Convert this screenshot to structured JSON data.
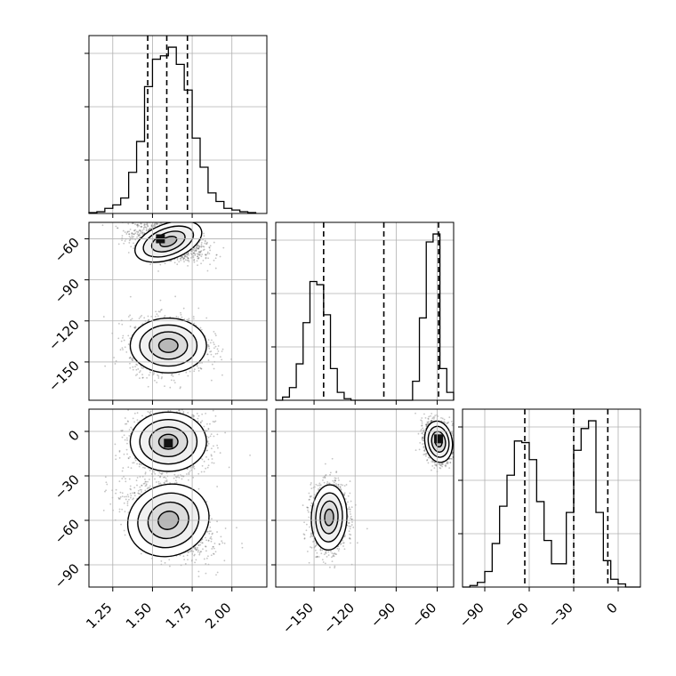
{
  "chart_data": {
    "type": "corner",
    "title": "",
    "grid": true,
    "colors": {
      "line": "#000000",
      "grid": "#b0b0b0",
      "sample": "#555555"
    },
    "parameters": [
      {
        "name": "",
        "range": [
          1.1,
          2.22
        ],
        "ticks": [
          1.25,
          1.5,
          1.75,
          2.0
        ],
        "tick_labels": [
          "1.25",
          "1.50",
          "1.75",
          "2.00"
        ]
      },
      {
        "name": "",
        "range": [
          -178,
          -48
        ],
        "ticks": [
          -150,
          -120,
          -90,
          -60
        ],
        "tick_labels": [
          "−150",
          "−120",
          "−90",
          "−60"
        ]
      },
      {
        "name": "",
        "range": [
          -105,
          15
        ],
        "ticks": [
          -90,
          -60,
          -30,
          0
        ],
        "tick_labels": [
          "−90",
          "−60",
          "−30",
          "0"
        ]
      }
    ],
    "histograms": [
      {
        "param": 0,
        "bin_edges": [
          1.1,
          1.15,
          1.2,
          1.25,
          1.3,
          1.35,
          1.4,
          1.45,
          1.5,
          1.55,
          1.6,
          1.65,
          1.7,
          1.75,
          1.8,
          1.85,
          1.9,
          1.95,
          2.0,
          2.05,
          2.1,
          2.15
        ],
        "counts": [
          0.005,
          0.01,
          0.03,
          0.05,
          0.09,
          0.24,
          0.42,
          0.74,
          0.9,
          0.92,
          0.97,
          0.87,
          0.72,
          0.44,
          0.27,
          0.12,
          0.07,
          0.03,
          0.02,
          0.01,
          0.005
        ],
        "quantiles": [
          1.47,
          1.59,
          1.72
        ]
      },
      {
        "param": 1,
        "bin_edges": [
          -178,
          -173,
          -168,
          -163,
          -158,
          -153,
          -148,
          -143,
          -138,
          -133,
          -128,
          -123,
          -118,
          -113,
          -108,
          -103,
          -98,
          -93,
          -88,
          -83,
          -78,
          -73,
          -68,
          -63,
          -58,
          -53,
          -48
        ],
        "counts": [
          0.0,
          0.02,
          0.08,
          0.23,
          0.49,
          0.75,
          0.73,
          0.54,
          0.2,
          0.05,
          0.01,
          0.0,
          0.0,
          0.0,
          0.0,
          0.0,
          0.0,
          0.0,
          0.0,
          0.0,
          0.12,
          0.52,
          1.0,
          1.05,
          0.2,
          0.05
        ],
        "quantiles": [
          -143,
          -99,
          -59
        ]
      },
      {
        "param": 2,
        "bin_edges": [
          -105,
          -100,
          -95,
          -90,
          -85,
          -80,
          -75,
          -70,
          -65,
          -60,
          -55,
          -50,
          -45,
          -40,
          -35,
          -30,
          -25,
          -20,
          -15,
          -10,
          -5,
          0,
          5,
          10,
          15
        ],
        "counts": [
          0.0,
          0.01,
          0.03,
          0.1,
          0.28,
          0.52,
          0.72,
          0.94,
          0.93,
          0.82,
          0.55,
          0.3,
          0.15,
          0.15,
          0.48,
          0.88,
          1.02,
          1.07,
          0.48,
          0.17,
          0.05,
          0.02,
          0.0,
          0.0
        ],
        "quantiles": [
          -63,
          -30,
          -7
        ]
      }
    ],
    "density_panels": [
      {
        "x_param": 0,
        "y_param": 1,
        "modes": [
          {
            "center": [
              1.6,
              -62
            ],
            "sigma": [
              0.11,
              6.5
            ],
            "rho": -0.45,
            "weight": 0.5
          },
          {
            "center": [
              1.6,
              -138
            ],
            "sigma": [
              0.12,
              10
            ],
            "rho": 0.0,
            "weight": 0.5
          }
        ],
        "peaks": [
          [
            1.55,
            -60
          ]
        ]
      },
      {
        "x_param": 0,
        "y_param": 2,
        "modes": [
          {
            "center": [
              1.6,
              -7
            ],
            "sigma": [
              0.12,
              10
            ],
            "rho": 0.0,
            "weight": 0.5
          },
          {
            "center": [
              1.6,
              -60
            ],
            "sigma": [
              0.13,
              12
            ],
            "rho": -0.45,
            "weight": 0.5
          }
        ],
        "peaks": [
          [
            1.6,
            -8
          ]
        ]
      },
      {
        "x_param": 1,
        "y_param": 2,
        "modes": [
          {
            "center": [
              -59,
              -7
            ],
            "sigma": [
              5,
              7
            ],
            "rho": -0.2,
            "weight": 0.5
          },
          {
            "center": [
              -139,
              -58
            ],
            "sigma": [
              6.5,
              11
            ],
            "rho": 0.05,
            "weight": 0.5
          }
        ],
        "peaks": [
          [
            -59,
            -5
          ]
        ]
      }
    ]
  }
}
